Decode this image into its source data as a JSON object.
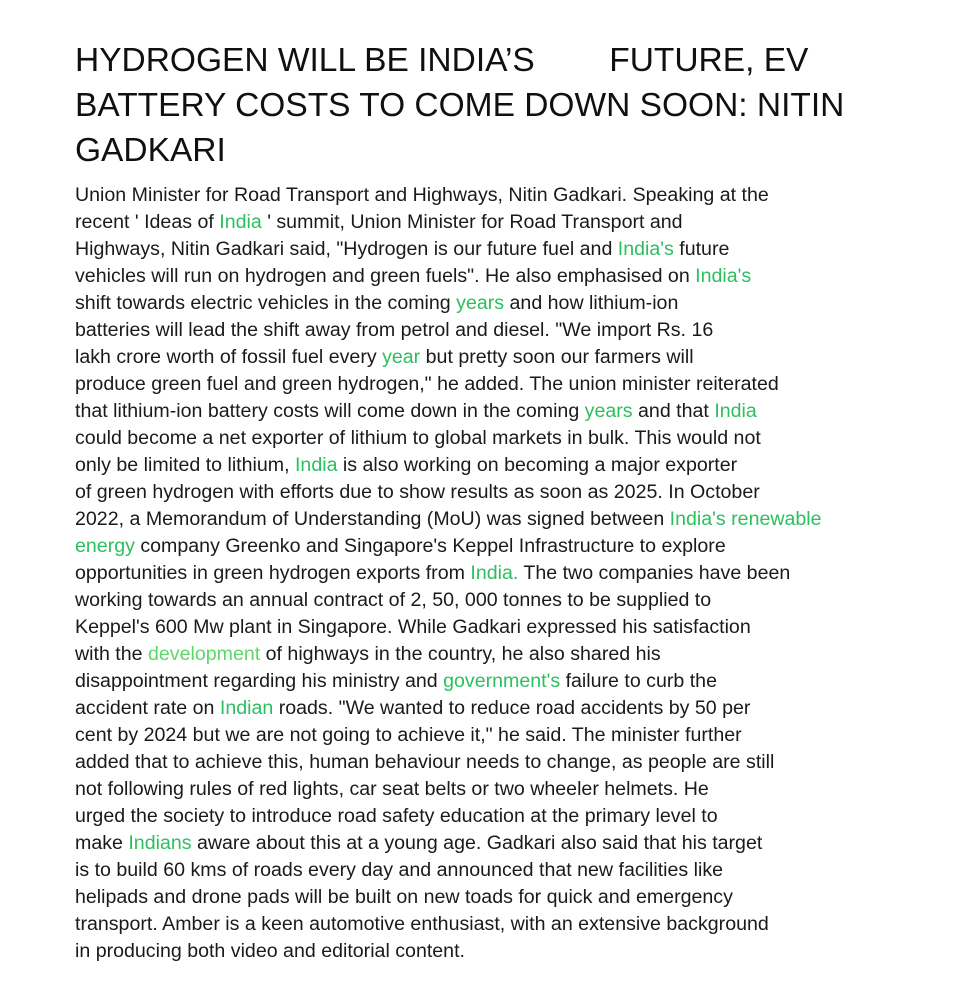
{
  "headline": {
    "lines": [
      "HYDROGEN WILL BE INDIA’S        FUTURE, EV",
      "BATTERY COSTS TO COME DOWN SOON: NITIN",
      "GADKARI"
    ]
  },
  "colors": {
    "text": "#1a1a1a",
    "keyword": "#2dbf5f",
    "keyword_light": "#5fd66a",
    "background": "#ffffff"
  },
  "body": {
    "l1": "Union Minister for Road Transport and Highways, Nitin Gadkari. Speaking at the",
    "l2a": "recent ' Ideas of ",
    "l2k": "India",
    "l2b": " ' summit, Union Minister for Road Transport and",
    "l3a": "Highways, Nitin Gadkari said, \"Hydrogen is our future fuel and ",
    "l3k": "India's",
    "l3b": " future",
    "l4a": "vehicles will run on hydrogen and green fuels\". He also emphasised on ",
    "l4k": "India's",
    "l5a": "shift towards electric vehicles in the coming ",
    "l5k": "years",
    "l5b": " and how lithium-ion",
    "l6": "batteries will lead the shift away from petrol and diesel. \"We import Rs. 16",
    "l7a": "lakh crore worth of fossil fuel every ",
    "l7k": "year",
    "l7b": " but pretty soon our farmers will",
    "l8": "produce green fuel and green hydrogen,\" he added. The union minister reiterated",
    "l9a": "that lithium-ion battery costs will come down in the coming ",
    "l9k1": "years",
    "l9b": " and that ",
    "l9k2": "India",
    "l10": "could become a net exporter of lithium to global markets in bulk. This would not",
    "l11a": "only be limited to lithium, ",
    "l11k": "India",
    "l11b": " is also working on becoming a major exporter",
    "l12": "of green hydrogen with efforts due to show results as soon as 2025. In October",
    "l13a": "2022, a Memorandum of Understanding (MoU) was signed between ",
    "l13k": "India's renewable",
    "l14k": "energy",
    "l14b": " company Greenko and Singapore's Keppel Infrastructure to explore",
    "l15a": "opportunities in green hydrogen exports from ",
    "l15k": "India.",
    "l15b": " The two companies have been",
    "l16": "working towards an annual contract of 2, 50, 000 tonnes to be supplied to",
    "l17": "Keppel's 600 Mw plant in Singapore. While Gadkari expressed his satisfaction",
    "l18a": "with the ",
    "l18k": "development",
    "l18b": " of highways in the country, he also shared his",
    "l19a": "disappointment regarding his ministry and ",
    "l19k": "government's",
    "l19b": " failure to curb the",
    "l20a": "accident rate on ",
    "l20k": "Indian",
    "l20b": " roads. \"We wanted to reduce road accidents by 50 per",
    "l21": "cent by 2024 but we are not going to achieve it,\" he said. The minister further",
    "l22": "added that to achieve this, human behaviour needs to change, as people are still",
    "l23": "not following rules of red lights, car seat belts or two wheeler helmets. He",
    "l24": "urged the society to introduce road safety education at the primary level to",
    "l25a": "make ",
    "l25k": "Indians",
    "l25b": " aware about this at a young age. Gadkari also said that his target",
    "l26": "is to build 60 kms of roads every day and announced that new facilities like",
    "l27": "helipads and drone pads will be built on new toads for quick and emergency",
    "l28": "transport. Amber is a keen automotive enthusiast, with an extensive background",
    "l29": "in producing both video and editorial content."
  }
}
